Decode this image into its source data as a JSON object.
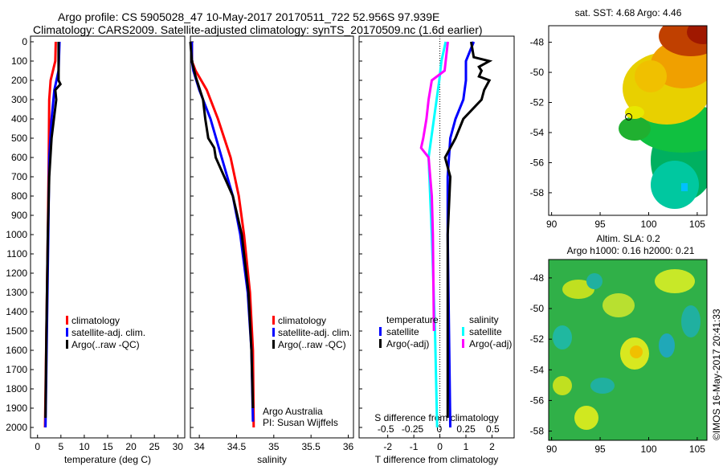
{
  "title_line1": "Argo profile: CS 5905028_47 10-May-2017 20170511_722 52.956S 97.939E",
  "title_line2": "Climatology: CARS2009. Satellite-adjusted climatology: synTS_20170509.nc (1.6d earlier)",
  "copyright": "©IMOS 16-May-2017 20:41:33",
  "colors": {
    "climatology": "#ff0000",
    "satellite": "#0000ff",
    "argo": "#000000",
    "sal_sat": "#00ffff",
    "sal_argo": "#ff00ff"
  },
  "chart_data": [
    {
      "type": "line",
      "id": "temperature",
      "xlabel": "temperature (deg C)",
      "ylabel": "",
      "xlim": [
        -1.5,
        31.5
      ],
      "ylim": [
        0,
        2050
      ],
      "xticks": [
        0,
        5,
        10,
        15,
        20,
        25,
        30
      ],
      "yticks": [
        0,
        100,
        200,
        300,
        400,
        500,
        600,
        700,
        800,
        900,
        1000,
        1100,
        1200,
        1300,
        1400,
        1500,
        1600,
        1700,
        1800,
        1900,
        2000
      ],
      "legend": [
        "climatology",
        "satellite-adj. clim.",
        "Argo(..raw -QC)"
      ],
      "series": [
        {
          "name": "climatology",
          "color": "#ff0000",
          "depth": [
            0,
            100,
            150,
            200,
            300,
            600,
            1000,
            1500,
            2000
          ],
          "values": [
            3.9,
            3.8,
            3.3,
            2.8,
            2.5,
            2.4,
            2.2,
            1.9,
            1.6
          ]
        },
        {
          "name": "satellite-adj. clim.",
          "color": "#0000ff",
          "depth": [
            0,
            150,
            250,
            400,
            600,
            1000,
            1500,
            2000
          ],
          "values": [
            4.7,
            4.5,
            3.6,
            3.0,
            2.5,
            2.3,
            2.0,
            1.7
          ]
        },
        {
          "name": "Argo(..raw -QC)",
          "color": "#000000",
          "depth": [
            0,
            200,
            220,
            250,
            300,
            500,
            700,
            1000,
            1500,
            1950
          ],
          "values": [
            4.5,
            4.5,
            4.9,
            3.8,
            4.0,
            3.0,
            2.5,
            2.2,
            1.9,
            1.7
          ]
        }
      ]
    },
    {
      "type": "line",
      "id": "salinity",
      "xlabel": "salinity",
      "xlim": [
        33.88,
        36.07
      ],
      "ylim": [
        0,
        2050
      ],
      "xticks": [
        34,
        34.5,
        35,
        35.5,
        36
      ],
      "legend": [
        "climatology",
        "satellite-adj. clim.",
        "Argo(..raw -QC)"
      ],
      "annotation": [
        "Argo Australia",
        "PI: Susan Wijffels"
      ],
      "series": [
        {
          "name": "climatology",
          "color": "#ff0000",
          "depth": [
            0,
            100,
            150,
            250,
            400,
            600,
            800,
            1000,
            1300,
            1600,
            2000
          ],
          "values": [
            33.9,
            33.9,
            33.95,
            34.1,
            34.25,
            34.42,
            34.53,
            34.6,
            34.68,
            34.72,
            34.73
          ]
        },
        {
          "name": "satellite-adj. clim.",
          "color": "#0000ff",
          "depth": [
            0,
            100,
            150,
            250,
            400,
            600,
            800,
            1000,
            1300,
            1600,
            1970
          ],
          "values": [
            33.9,
            33.9,
            33.92,
            34.0,
            34.15,
            34.3,
            34.45,
            34.55,
            34.65,
            34.7,
            34.72
          ]
        },
        {
          "name": "Argo(..raw -QC)",
          "color": "#000000",
          "depth": [
            0,
            100,
            180,
            300,
            400,
            500,
            550,
            600,
            800,
            1000,
            1300,
            1600,
            1900
          ],
          "values": [
            33.88,
            33.9,
            33.95,
            34.05,
            34.08,
            34.12,
            34.2,
            34.22,
            34.45,
            34.57,
            34.66,
            34.7,
            34.72
          ]
        }
      ]
    },
    {
      "type": "line",
      "id": "difference",
      "xlabel": "T difference from climatology",
      "x2label": "S difference from climatology",
      "xlim": [
        -3.1,
        2.85
      ],
      "x2lim": [
        -0.75,
        0.7
      ],
      "ylim": [
        0,
        2050
      ],
      "xticks": [
        -2,
        -1,
        0,
        1,
        2
      ],
      "x2ticks": [
        -0.5,
        -0.25,
        0,
        0.25,
        0.5
      ],
      "legend_temperature": {
        "title": "temperature",
        "items": [
          "satellite",
          "Argo(-adj)"
        ]
      },
      "legend_salinity": {
        "title": "salinity",
        "items": [
          "satellite",
          "Argo(-adj)"
        ]
      },
      "series": [
        {
          "name": "T satellite",
          "axis": "x",
          "color": "#0000ff",
          "depth": [
            0,
            100,
            200,
            300,
            400,
            500,
            700,
            1000,
            1500,
            2000
          ],
          "values": [
            1.3,
            1.0,
            1.0,
            0.9,
            0.6,
            0.4,
            0.3,
            0.3,
            0.35,
            0.4
          ]
        },
        {
          "name": "T Argo(-adj)",
          "axis": "x",
          "color": "#000000",
          "depth": [
            0,
            80,
            100,
            130,
            150,
            180,
            200,
            250,
            300,
            400,
            500,
            600,
            650,
            700,
            1000,
            1500,
            1950
          ],
          "values": [
            1.2,
            1.3,
            1.9,
            1.5,
            1.6,
            1.5,
            1.9,
            1.7,
            1.6,
            0.9,
            0.6,
            0.2,
            0.3,
            0.4,
            0.3,
            0.3,
            0.3
          ]
        },
        {
          "name": "S satellite",
          "axis": "x2",
          "color": "#00ffff",
          "depth": [
            0,
            100,
            200,
            400,
            600,
            1000,
            1500,
            2000
          ],
          "values": [
            0.06,
            0.02,
            0.0,
            -0.05,
            -0.1,
            -0.07,
            -0.04,
            -0.02
          ]
        },
        {
          "name": "S Argo(-adj)",
          "axis": "x2",
          "color": "#ff00ff",
          "depth": [
            0,
            150,
            200,
            300,
            400,
            500,
            550,
            600,
            800,
            1000,
            1500
          ],
          "values": [
            0.08,
            0.05,
            -0.07,
            -0.1,
            -0.12,
            -0.15,
            -0.17,
            -0.1,
            -0.07,
            -0.06,
            -0.05
          ]
        }
      ]
    },
    {
      "type": "heatmap",
      "id": "sst-map",
      "title": "sat. SST: 4.68 Argo: 4.46",
      "xlim": [
        89.7,
        106
      ],
      "ylim": [
        -59.5,
        -46.9
      ],
      "xticks": [
        90,
        95,
        100,
        105
      ],
      "yticks": [
        -48,
        -50,
        -52,
        -54,
        -56,
        -58
      ],
      "argo_position": [
        97.939,
        -52.956
      ]
    },
    {
      "type": "heatmap",
      "id": "sla-map",
      "title": "Altim. SLA: 0.2",
      "subtitle": "Argo h1000: 0.16 h2000: 0.21",
      "xlim": [
        89.7,
        106
      ],
      "ylim": [
        -58.6,
        -46.8
      ],
      "xticks": [
        90,
        95,
        100,
        105
      ],
      "yticks": [
        -48,
        -50,
        -52,
        -54,
        -56,
        -58
      ]
    }
  ]
}
